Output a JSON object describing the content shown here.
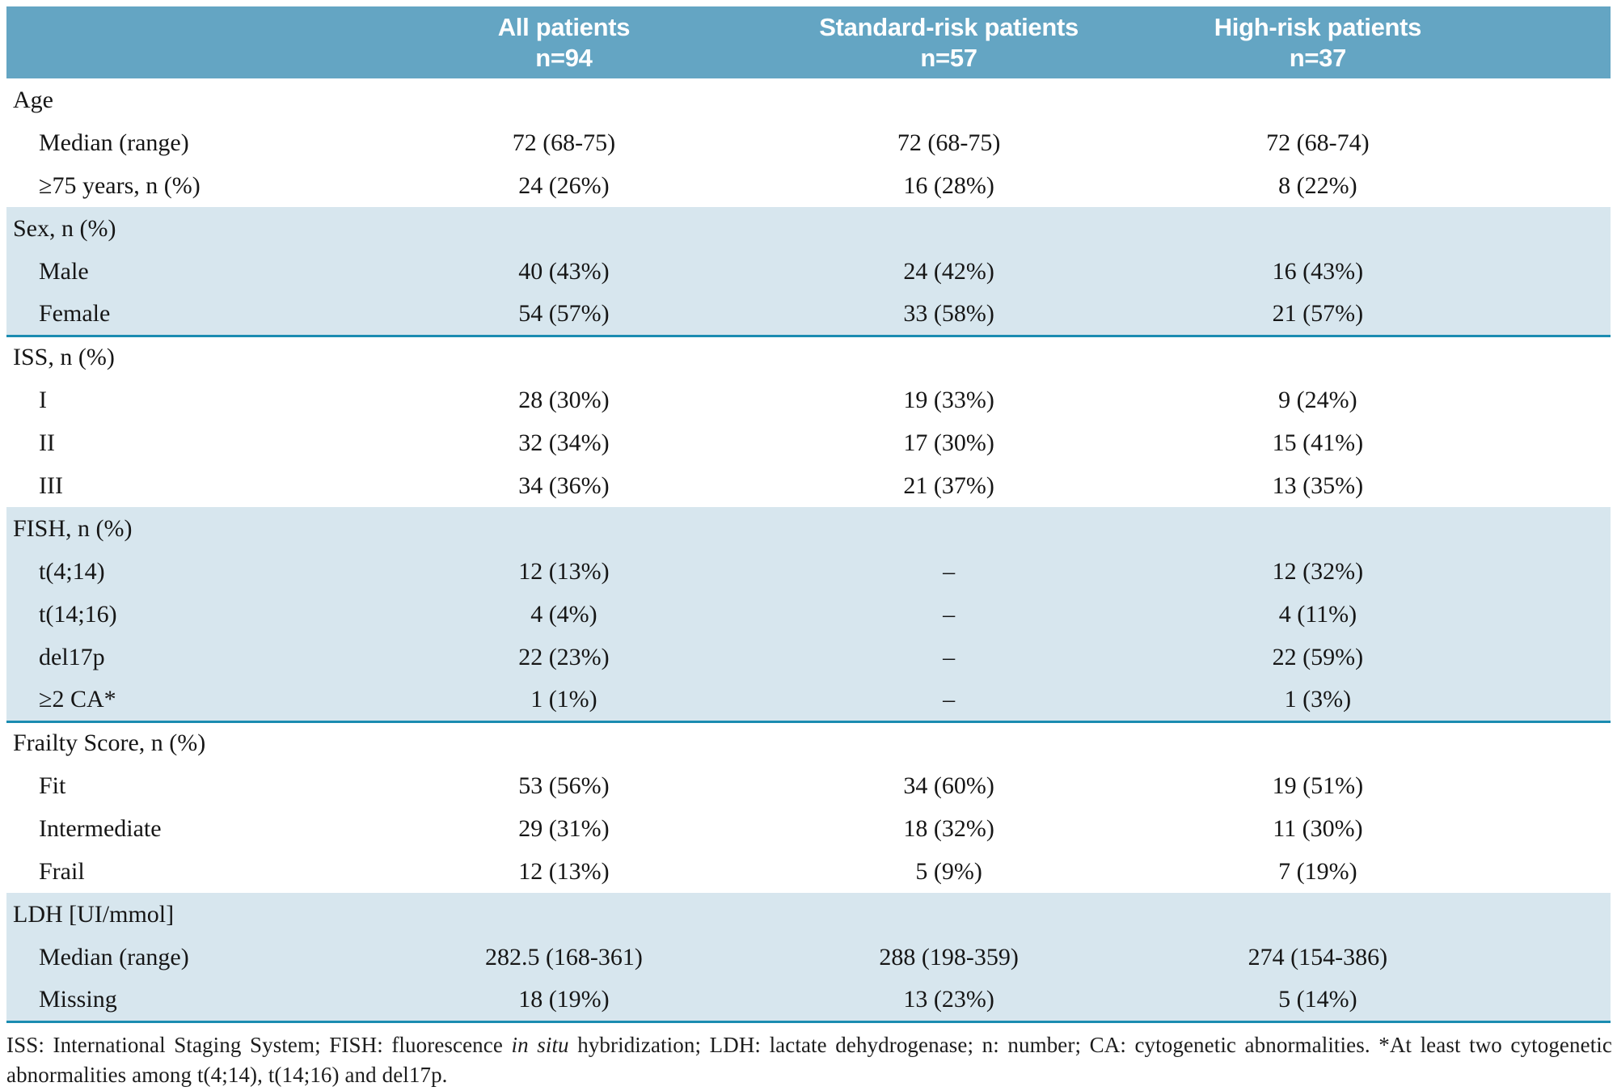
{
  "table": {
    "columns": [
      {
        "label": "All patients",
        "n": "n=94"
      },
      {
        "label": "Standard-risk patients",
        "n": "n=57"
      },
      {
        "label": "High-risk patients",
        "n": "n=37"
      }
    ],
    "sections": [
      {
        "title": "Age",
        "shaded": false,
        "rows": [
          {
            "label": "Median (range)",
            "values": [
              "72 (68-75)",
              "72 (68-75)",
              "72 (68-74)"
            ]
          },
          {
            "label": "≥75 years, n (%)",
            "values": [
              "24 (26%)",
              "16 (28%)",
              "8 (22%)"
            ]
          }
        ]
      },
      {
        "title": "Sex, n (%)",
        "shaded": true,
        "rows": [
          {
            "label": "Male",
            "values": [
              "40 (43%)",
              "24 (42%)",
              "16 (43%)"
            ]
          },
          {
            "label": "Female",
            "values": [
              "54 (57%)",
              "33 (58%)",
              "21 (57%)"
            ]
          }
        ]
      },
      {
        "title": "ISS, n (%)",
        "shaded": false,
        "rows": [
          {
            "label": "I",
            "values": [
              "28 (30%)",
              "19 (33%)",
              "9 (24%)"
            ]
          },
          {
            "label": "II",
            "values": [
              "32 (34%)",
              "17 (30%)",
              "15 (41%)"
            ]
          },
          {
            "label": "III",
            "values": [
              "34 (36%)",
              "21 (37%)",
              "13 (35%)"
            ]
          }
        ]
      },
      {
        "title": "FISH, n (%)",
        "shaded": true,
        "rows": [
          {
            "label": "t(4;14)",
            "values": [
              "12 (13%)",
              "–",
              "12 (32%)"
            ]
          },
          {
            "label": "t(14;16)",
            "values": [
              "4 (4%)",
              "–",
              "4 (11%)"
            ]
          },
          {
            "label": "del17p",
            "values": [
              "22 (23%)",
              "–",
              "22 (59%)"
            ]
          },
          {
            "label": "≥2 CA*",
            "values": [
              "1 (1%)",
              "–",
              "1 (3%)"
            ]
          }
        ]
      },
      {
        "title": "Frailty Score, n (%)",
        "shaded": false,
        "rows": [
          {
            "label": "Fit",
            "values": [
              "53 (56%)",
              "34 (60%)",
              "19 (51%)"
            ]
          },
          {
            "label": "Intermediate",
            "values": [
              "29 (31%)",
              "18 (32%)",
              "11 (30%)"
            ]
          },
          {
            "label": "Frail",
            "values": [
              "12 (13%)",
              "5 (9%)",
              "7 (19%)"
            ]
          }
        ]
      },
      {
        "title": "LDH [UI/mmol]",
        "shaded": true,
        "rows": [
          {
            "label": "Median (range)",
            "values": [
              "282.5 (168-361)",
              "288 (198-359)",
              "274 (154-386)"
            ]
          },
          {
            "label": "Missing",
            "values": [
              "18 (19%)",
              "13 (23%)",
              "5 (14%)"
            ]
          }
        ]
      }
    ]
  },
  "footnote": {
    "line1_pre": "ISS: International Staging System; FISH: fluorescence ",
    "line1_italic": "in situ",
    "line1_post": " hybridization; LDH: lactate dehydrogenase; n: number; CA: cytogenetic abnormalities. *At least two cytogenetic",
    "line2": "abnormalities among t(4;14), t(14;16) and del17p."
  },
  "colors": {
    "header_bg": "#64a5c3",
    "stripe_bg": "#d7e6ee",
    "divider": "#1b8cb1",
    "header_text": "#ffffff",
    "body_text": "#161616"
  }
}
